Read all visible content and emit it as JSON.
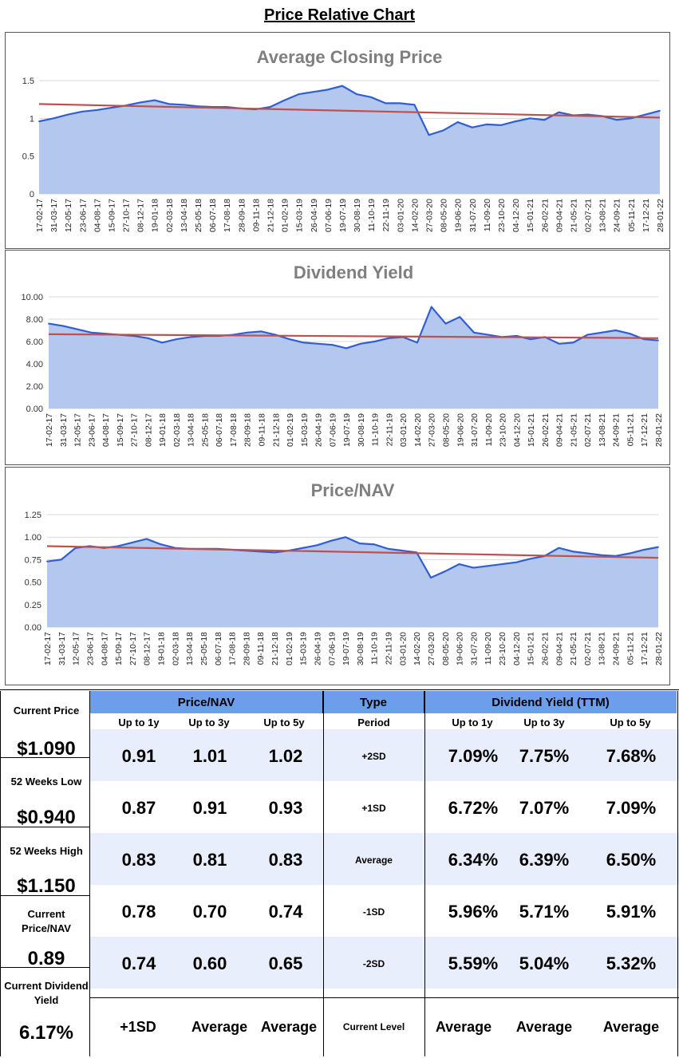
{
  "page_title": "Price Relative Chart",
  "colors": {
    "line": "#2f5fd0",
    "fill": "#b3c7ef",
    "trend": "#c0504d",
    "header_bg": "#6d9eeb",
    "band_bg": "#e8eefb"
  },
  "dates": [
    "17-02-17",
    "31-03-17",
    "12-05-17",
    "23-06-17",
    "04-08-17",
    "15-09-17",
    "27-10-17",
    "08-12-17",
    "19-01-18",
    "02-03-18",
    "13-04-18",
    "25-05-18",
    "06-07-18",
    "17-08-18",
    "28-09-18",
    "09-11-18",
    "21-12-18",
    "01-02-19",
    "15-03-19",
    "26-04-19",
    "07-06-19",
    "19-07-19",
    "30-08-19",
    "11-10-19",
    "22-11-19",
    "03-01-20",
    "14-02-20",
    "27-03-20",
    "08-05-20",
    "19-06-20",
    "31-07-20",
    "11-09-20",
    "23-10-20",
    "04-12-20",
    "15-01-21",
    "26-02-21",
    "09-04-21",
    "21-05-21",
    "02-07-21",
    "13-08-21",
    "24-09-21",
    "05-11-21",
    "17-12-21",
    "28-01-22"
  ],
  "chart_data": [
    {
      "type": "area",
      "title": "Average Closing Price",
      "yticks": [
        "0",
        "0.5",
        "1",
        "1.5"
      ],
      "ylim": [
        0,
        1.5
      ],
      "grid": true,
      "x": [
        "17-02-17",
        "31-03-17",
        "12-05-17",
        "23-06-17",
        "04-08-17",
        "15-09-17",
        "27-10-17",
        "08-12-17",
        "19-01-18",
        "02-03-18",
        "13-04-18",
        "25-05-18",
        "06-07-18",
        "17-08-18",
        "28-09-18",
        "09-11-18",
        "21-12-18",
        "01-02-19",
        "15-03-19",
        "26-04-19",
        "07-06-19",
        "19-07-19",
        "30-08-19",
        "11-10-19",
        "22-11-19",
        "03-01-20",
        "14-02-20",
        "27-03-20",
        "08-05-20",
        "19-06-20",
        "31-07-20",
        "11-09-20",
        "23-10-20",
        "04-12-20",
        "15-01-21",
        "26-02-21",
        "09-04-21",
        "21-05-21",
        "02-07-21",
        "13-08-21",
        "24-09-21",
        "05-11-21",
        "17-12-21",
        "28-01-22"
      ],
      "values": [
        0.96,
        1.0,
        1.05,
        1.09,
        1.11,
        1.14,
        1.17,
        1.21,
        1.24,
        1.19,
        1.18,
        1.16,
        1.15,
        1.15,
        1.13,
        1.12,
        1.15,
        1.24,
        1.32,
        1.35,
        1.38,
        1.43,
        1.32,
        1.28,
        1.2,
        1.2,
        1.18,
        0.78,
        0.84,
        0.95,
        0.88,
        0.92,
        0.91,
        0.96,
        1.0,
        0.98,
        1.08,
        1.04,
        1.05,
        1.03,
        0.98,
        1.0,
        1.05,
        1.1
      ],
      "trend": [
        1.19,
        1.01
      ]
    },
    {
      "type": "area",
      "title": "Dividend Yield",
      "yticks": [
        "0.00",
        "2.00",
        "4.00",
        "6.00",
        "8.00",
        "10.00"
      ],
      "ylim": [
        0,
        10
      ],
      "grid": true,
      "x": [
        "17-02-17",
        "31-03-17",
        "12-05-17",
        "23-06-17",
        "04-08-17",
        "15-09-17",
        "27-10-17",
        "08-12-17",
        "19-01-18",
        "02-03-18",
        "13-04-18",
        "25-05-18",
        "06-07-18",
        "17-08-18",
        "28-09-18",
        "09-11-18",
        "21-12-18",
        "01-02-19",
        "15-03-19",
        "26-04-19",
        "07-06-19",
        "19-07-19",
        "30-08-19",
        "11-10-19",
        "22-11-19",
        "03-01-20",
        "14-02-20",
        "27-03-20",
        "08-05-20",
        "19-06-20",
        "31-07-20",
        "11-09-20",
        "23-10-20",
        "04-12-20",
        "15-01-21",
        "26-02-21",
        "09-04-21",
        "21-05-21",
        "02-07-21",
        "13-08-21",
        "24-09-21",
        "05-11-21",
        "17-12-21",
        "28-01-22"
      ],
      "values": [
        7.6,
        7.4,
        7.1,
        6.8,
        6.7,
        6.6,
        6.5,
        6.3,
        5.9,
        6.2,
        6.4,
        6.5,
        6.5,
        6.6,
        6.8,
        6.9,
        6.6,
        6.2,
        5.9,
        5.8,
        5.7,
        5.4,
        5.8,
        6.0,
        6.3,
        6.4,
        5.9,
        9.1,
        7.6,
        8.2,
        6.8,
        6.6,
        6.4,
        6.5,
        6.2,
        6.4,
        5.8,
        5.9,
        6.6,
        6.8,
        7.0,
        6.7,
        6.2,
        6.1
      ],
      "trend": [
        6.65,
        6.3
      ]
    },
    {
      "type": "area",
      "title": "Price/NAV",
      "yticks": [
        "0.00",
        "0.25",
        "0.50",
        "0.75",
        "1.00",
        "1.25"
      ],
      "ylim": [
        0,
        1.25
      ],
      "grid": true,
      "x": [
        "17-02-17",
        "31-03-17",
        "12-05-17",
        "23-06-17",
        "04-08-17",
        "15-09-17",
        "27-10-17",
        "08-12-17",
        "19-01-18",
        "02-03-18",
        "13-04-18",
        "25-05-18",
        "06-07-18",
        "17-08-18",
        "28-09-18",
        "09-11-18",
        "21-12-18",
        "01-02-19",
        "15-03-19",
        "26-04-19",
        "07-06-19",
        "19-07-19",
        "30-08-19",
        "11-10-19",
        "22-11-19",
        "03-01-20",
        "14-02-20",
        "27-03-20",
        "08-05-20",
        "19-06-20",
        "31-07-20",
        "11-09-20",
        "23-10-20",
        "04-12-20",
        "15-01-21",
        "26-02-21",
        "09-04-21",
        "21-05-21",
        "02-07-21",
        "13-08-21",
        "24-09-21",
        "05-11-21",
        "17-12-21",
        "28-01-22"
      ],
      "values": [
        0.73,
        0.75,
        0.88,
        0.9,
        0.88,
        0.9,
        0.94,
        0.98,
        0.92,
        0.88,
        0.87,
        0.87,
        0.87,
        0.86,
        0.85,
        0.84,
        0.83,
        0.85,
        0.88,
        0.91,
        0.96,
        1.0,
        0.93,
        0.92,
        0.87,
        0.85,
        0.83,
        0.55,
        0.62,
        0.7,
        0.66,
        0.68,
        0.7,
        0.72,
        0.76,
        0.79,
        0.88,
        0.84,
        0.82,
        0.8,
        0.79,
        0.82,
        0.86,
        0.89
      ],
      "trend": [
        0.9,
        0.77
      ]
    }
  ],
  "left_panel": [
    {
      "label": "Current Price",
      "value": "$1.090"
    },
    {
      "label": "52 Weeks Low",
      "value": "$0.940"
    },
    {
      "label": "52 Weeks High",
      "value": "$1.150"
    },
    {
      "label": "Current Price/NAV",
      "value": "0.89"
    },
    {
      "label": "Current Dividend Yield",
      "value": "6.17%"
    }
  ],
  "table": {
    "price_nav_header": "Price/NAV",
    "type_header": "Type",
    "dy_header": "Dividend Yield (TTM)",
    "period_label": "Period",
    "subheaders": [
      "Up to 1y",
      "Up to 3y",
      "Up to 5y"
    ],
    "rows": [
      {
        "type": "+2SD",
        "pnav": [
          "0.91",
          "1.01",
          "1.02"
        ],
        "dy": [
          "7.09%",
          "7.75%",
          "7.68%"
        ]
      },
      {
        "type": "+1SD",
        "pnav": [
          "0.87",
          "0.91",
          "0.93"
        ],
        "dy": [
          "6.72%",
          "7.07%",
          "7.09%"
        ]
      },
      {
        "type": "Average",
        "pnav": [
          "0.83",
          "0.81",
          "0.83"
        ],
        "dy": [
          "6.34%",
          "6.39%",
          "6.50%"
        ]
      },
      {
        "type": "-1SD",
        "pnav": [
          "0.78",
          "0.70",
          "0.74"
        ],
        "dy": [
          "5.96%",
          "5.71%",
          "5.91%"
        ]
      },
      {
        "type": "-2SD",
        "pnav": [
          "0.74",
          "0.60",
          "0.65"
        ],
        "dy": [
          "5.59%",
          "5.04%",
          "5.32%"
        ]
      }
    ],
    "current_level_label": "Current Level",
    "current_pnav": [
      "+1SD",
      "Average",
      "Average"
    ],
    "current_dy": [
      "Average",
      "Average",
      "Average"
    ]
  }
}
